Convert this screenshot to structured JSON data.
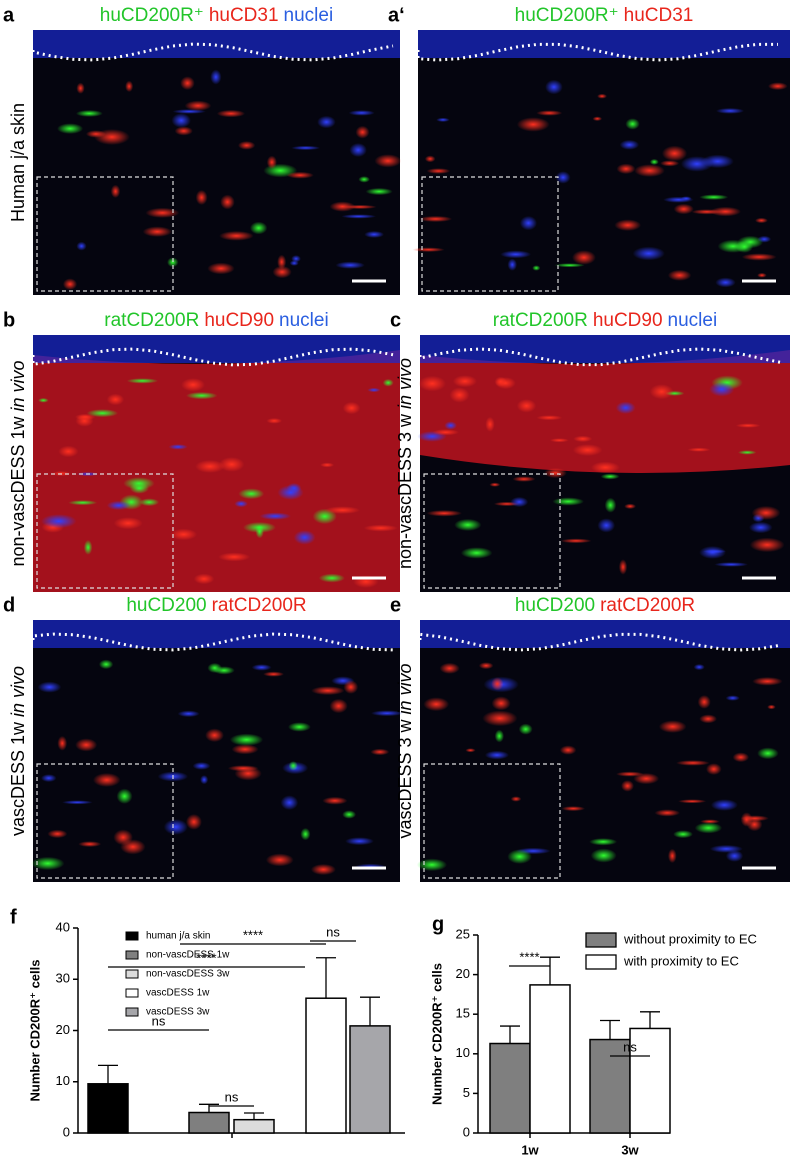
{
  "panels": [
    {
      "letter": "a",
      "stains": [
        {
          "text": "huCD200R⁺",
          "color": "#22c52a"
        },
        {
          "text": "huCD31",
          "color": "#e8261c"
        },
        {
          "text": "nuclei",
          "color": "#2a5ee0"
        }
      ],
      "side": [
        "Human j/a skin"
      ]
    },
    {
      "letter": "a‘",
      "stains": [
        {
          "text": "huCD200R⁺",
          "color": "#22c52a"
        },
        {
          "text": "huCD31",
          "color": "#e8261c"
        }
      ]
    },
    {
      "letter": "b",
      "stains": [
        {
          "text": "ratCD200R",
          "color": "#22c52a"
        },
        {
          "text": "huCD90",
          "color": "#e8261c"
        },
        {
          "text": "nuclei",
          "color": "#2a5ee0"
        }
      ],
      "side": [
        "non-vascDESS 1w",
        "in vivo"
      ]
    },
    {
      "letter": "c",
      "stains": [
        {
          "text": "ratCD200R",
          "color": "#22c52a"
        },
        {
          "text": "huCD90",
          "color": "#e8261c"
        },
        {
          "text": "nuclei",
          "color": "#2a5ee0"
        }
      ],
      "side": [
        "non-vascDESS 3 w",
        "in vivo"
      ]
    },
    {
      "letter": "d",
      "stains": [
        {
          "text": "huCD200",
          "color": "#22c52a"
        },
        {
          "text": "ratCD200R",
          "color": "#e8261c"
        }
      ],
      "side": [
        "vascDESS 1w",
        "in vivo"
      ]
    },
    {
      "letter": "e",
      "stains": [
        {
          "text": "huCD200",
          "color": "#22c52a"
        },
        {
          "text": "ratCD200R",
          "color": "#e8261c"
        }
      ],
      "side": [
        "vascDESS 3 w",
        "in vivo"
      ]
    }
  ],
  "chart_data": [
    {
      "type": "bar",
      "letter": "f",
      "y_label": "Number CD200R⁺ cells",
      "categories": [
        "human j/a skin",
        "non-vascDESS 1w",
        "non-vascDESS 3w",
        "vascDESS 1w",
        "vascDESS 3w"
      ],
      "values": [
        9.6,
        4.0,
        2.6,
        26.3,
        20.9
      ],
      "errors": [
        3.6,
        1.6,
        1.3,
        7.9,
        5.6
      ],
      "colors": [
        "#000000",
        "#7f7f7f",
        "#dcdcdc",
        "#ffffff",
        "#a6a6aa"
      ],
      "ylim": [
        0,
        40
      ],
      "yticks": [
        0,
        10,
        20,
        30,
        40
      ],
      "annotations": [
        {
          "text": "****"
        },
        {
          "text": "****"
        },
        {
          "text": "ns"
        },
        {
          "text": "ns"
        },
        {
          "text": "ns"
        }
      ]
    },
    {
      "type": "grouped_bar",
      "letter": "g",
      "y_label": "Number CD200R⁺ cells",
      "categories": [
        "1w",
        "3w"
      ],
      "series": [
        {
          "name": "without proximity to EC",
          "color": "#7f7f7f",
          "values": [
            11.3,
            11.8
          ],
          "errors": [
            2.2,
            2.4
          ]
        },
        {
          "name": "with proximity to EC",
          "color": "#ffffff",
          "values": [
            18.7,
            13.2
          ],
          "errors": [
            3.5,
            2.1
          ]
        }
      ],
      "ylim": [
        0,
        25
      ],
      "yticks": [
        0,
        5,
        10,
        15,
        20,
        25
      ],
      "annotations": [
        {
          "text": "****"
        },
        {
          "text": "ns"
        }
      ]
    }
  ]
}
